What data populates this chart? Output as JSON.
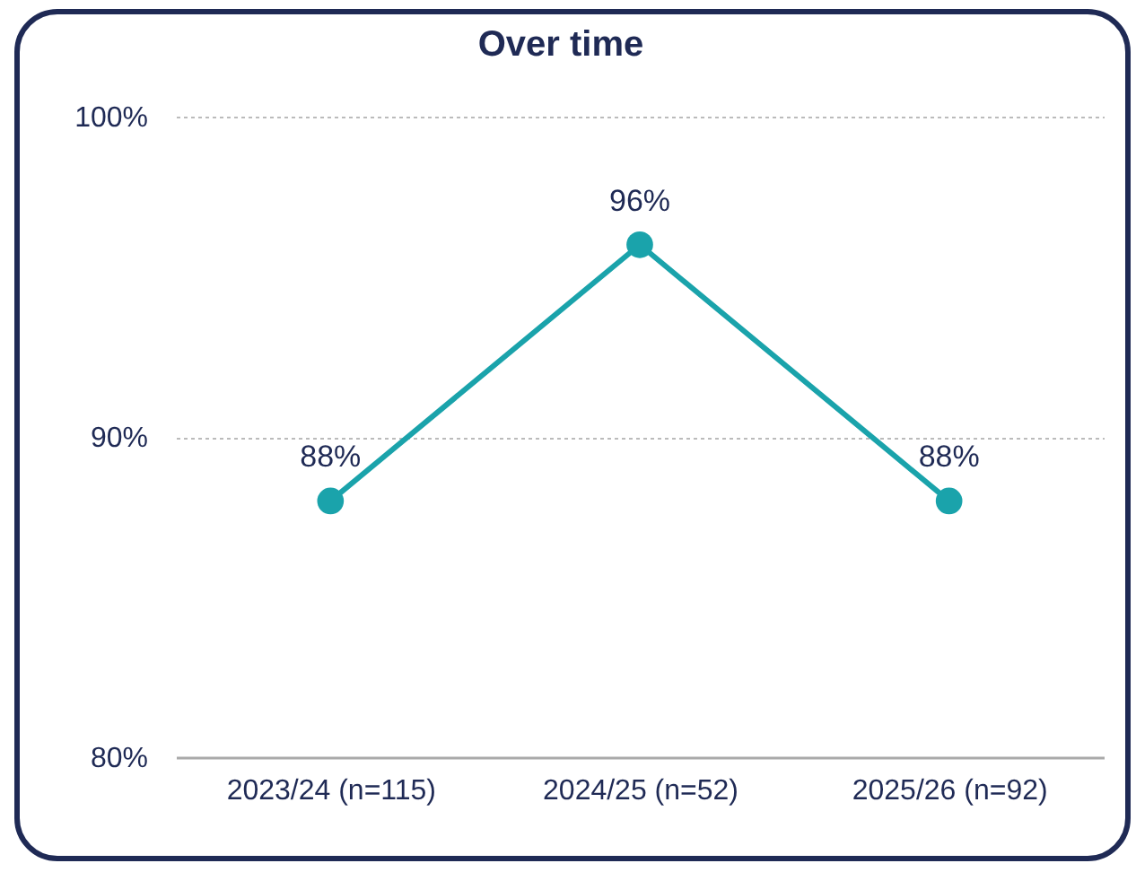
{
  "chart_data": {
    "type": "line",
    "title": "Over time",
    "categories": [
      "2023/24 (n=115)",
      "2024/25 (n=52)",
      "2025/26 (n=92)"
    ],
    "series": [
      {
        "color": "#1aa3ab",
        "values": [
          88,
          96,
          88
        ],
        "value_labels": [
          "88%",
          "96%",
          "88%"
        ]
      }
    ],
    "ylim": [
      80,
      100
    ],
    "yticks": [
      {
        "value": 80,
        "label": "80%"
      },
      {
        "value": 90,
        "label": "90%"
      },
      {
        "value": 100,
        "label": "100%"
      }
    ],
    "grid": "y",
    "marker": "circle",
    "line_style": "solid"
  }
}
